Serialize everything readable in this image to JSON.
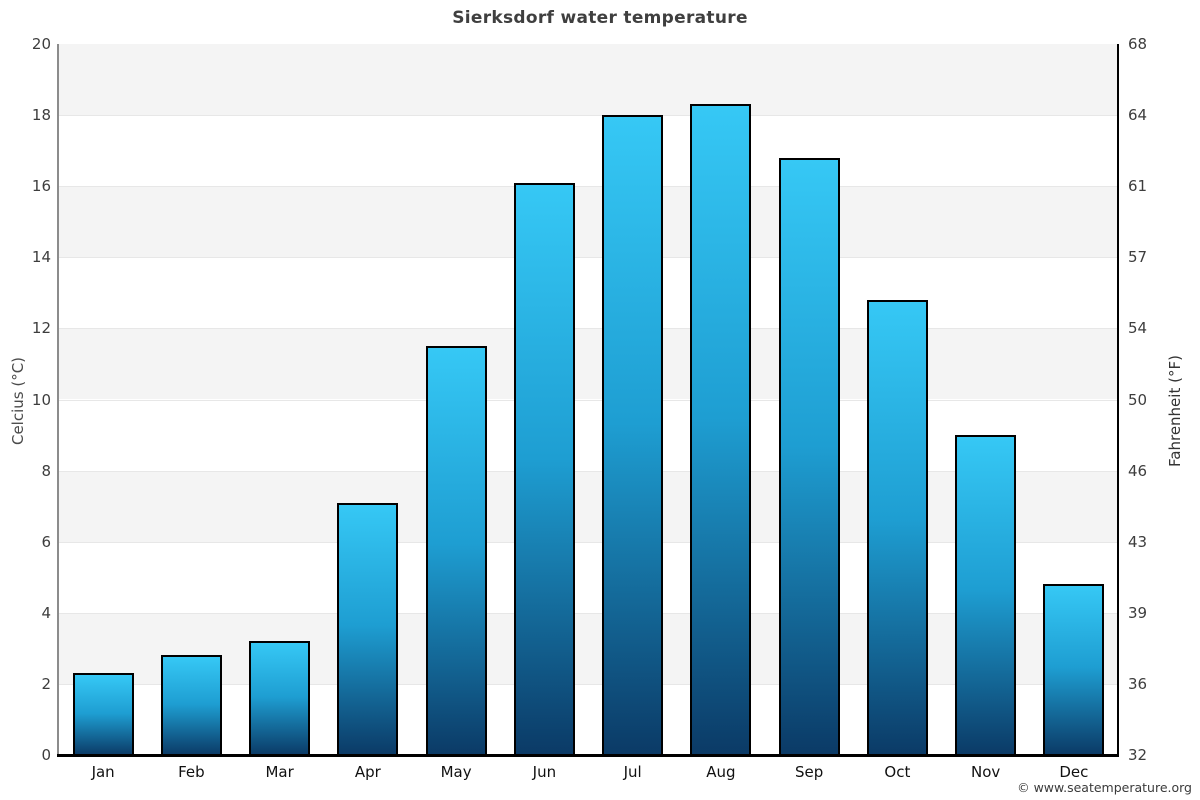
{
  "page": {
    "footer_credit": "© www.seatemperature.org"
  },
  "chart_data": {
    "type": "bar",
    "title": "Sierksdorf water temperature",
    "categories": [
      "Jan",
      "Feb",
      "Mar",
      "Apr",
      "May",
      "Jun",
      "Jul",
      "Aug",
      "Sep",
      "Oct",
      "Nov",
      "Dec"
    ],
    "values": [
      2.3,
      2.8,
      3.2,
      7.1,
      11.5,
      16.1,
      18.0,
      18.3,
      16.8,
      12.8,
      9.0,
      4.8
    ],
    "series_name": "Water temperature (°C)",
    "xlabel": "",
    "ylabel_left": "Celcius (°C)",
    "ylabel_right": "Fahrenheit (°F)",
    "ylim": [
      0,
      20
    ],
    "yticks_celsius": [
      0,
      2,
      4,
      6,
      8,
      10,
      12,
      14,
      16,
      18,
      20
    ],
    "yticks_fahrenheit_labels": [
      "32",
      "36",
      "39",
      "43",
      "46",
      "50",
      "54",
      "57",
      "61",
      "64",
      "68"
    ],
    "grid": "horizontal gridlines every 2°C with alternating shaded bands",
    "legend": "none",
    "colors": {
      "bar_gradient_top": "#36c8f5",
      "bar_gradient_mid": "#1e9ed2",
      "bar_gradient_bottom": "#0b3a66",
      "bar_border": "#000000",
      "band_fill": "#f4f4f4",
      "gridline": "#e7e7e7",
      "axis_left_line": "#8c8c8c",
      "axis_right_line": "#000000",
      "axis_bottom_line": "#000000",
      "title_color": "#3f3f3f",
      "tick_color": "#3d3d3d",
      "month_color": "#111111"
    }
  }
}
